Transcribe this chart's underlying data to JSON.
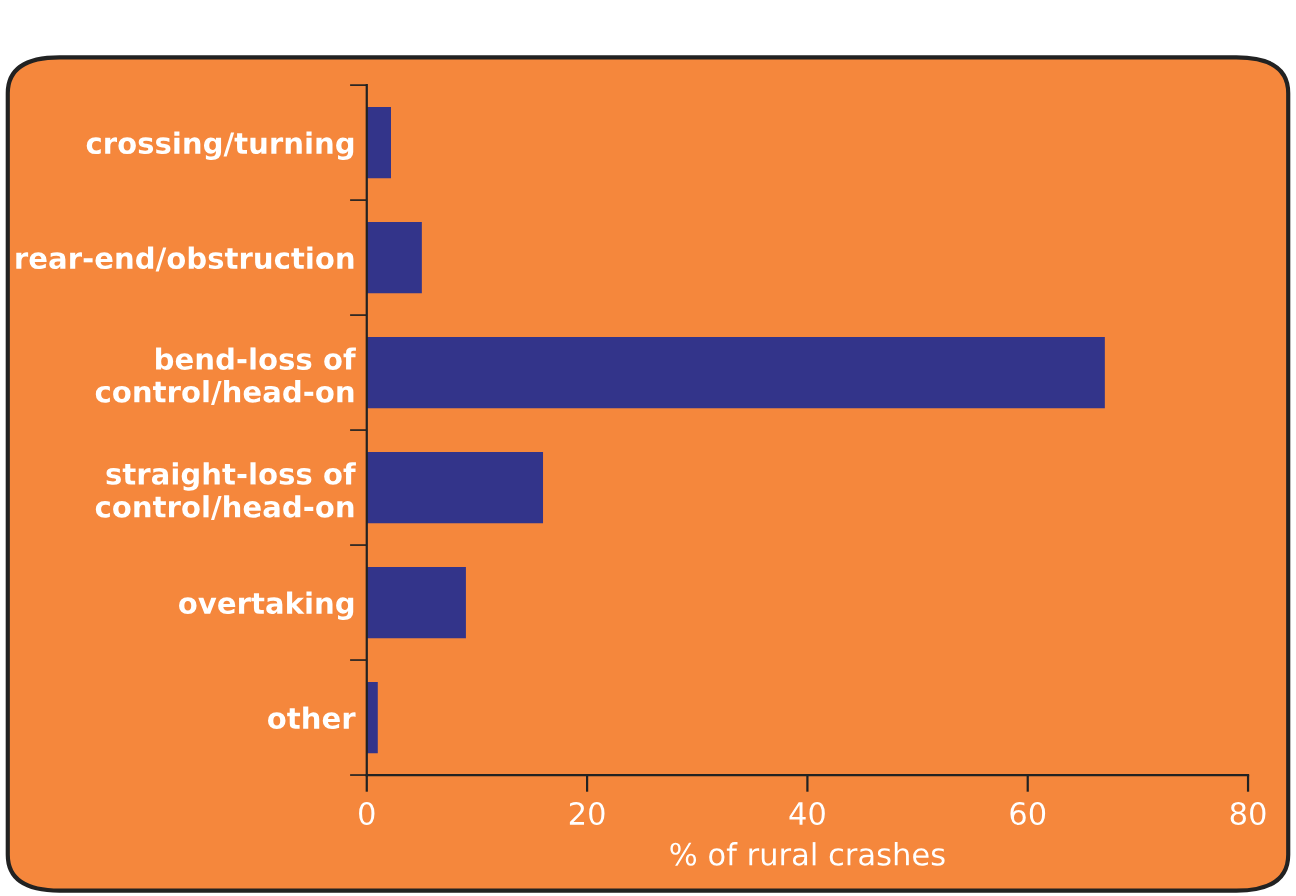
{
  "chart_data": {
    "type": "bar",
    "orientation": "horizontal",
    "xlabel": "% of rural crashes",
    "categories": [
      "crossing/turning",
      "rear-end/obstruction",
      "bend-loss of\ncontrol/head-on",
      "straight-loss of\ncontrol/head-on",
      "overtaking",
      "other"
    ],
    "values": [
      2.2,
      5,
      67,
      16,
      9,
      1
    ],
    "color": "#33348a",
    "xlim": [
      0,
      80
    ],
    "xticks": [
      0,
      20,
      40,
      60,
      80
    ],
    "grid": false,
    "legend": false
  }
}
